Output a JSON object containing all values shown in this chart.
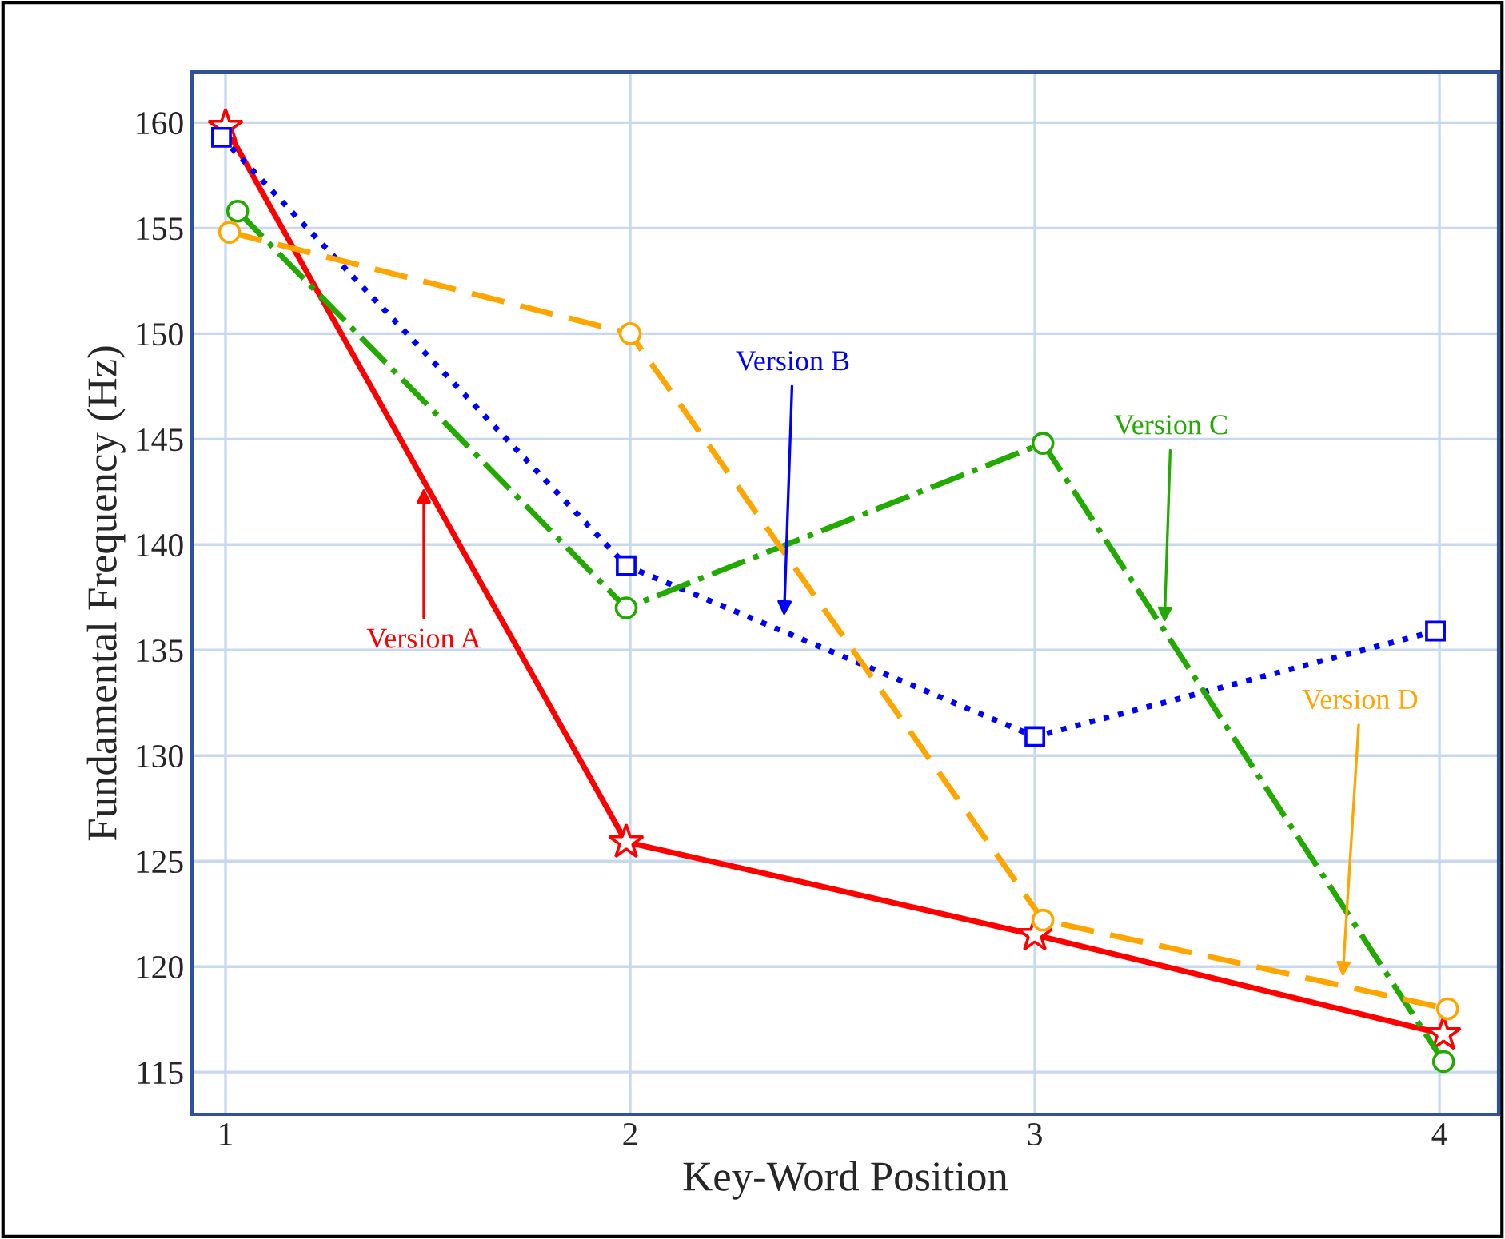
{
  "chart_data": {
    "type": "line",
    "xlabel": "Key-Word Position",
    "ylabel": "Fundamental Frequency (Hz)",
    "xlim": [
      0.917,
      4.146
    ],
    "ylim": [
      113.0,
      162.4
    ],
    "xticks": [
      1,
      2,
      3,
      4
    ],
    "yticks": [
      115,
      120,
      125,
      130,
      135,
      140,
      145,
      150,
      155,
      160
    ],
    "grid": true,
    "series": [
      {
        "color": "#ff0000",
        "x": [
          1.0,
          1.99,
          3.0,
          4.01
        ],
        "values": [
          159.8,
          125.9,
          121.5,
          116.8
        ],
        "marker": "star",
        "line_style": "solid"
      },
      {
        "color": "#0000ff",
        "x": [
          0.99,
          1.99,
          3.0,
          3.99
        ],
        "values": [
          159.3,
          139.0,
          130.9,
          135.9
        ],
        "marker": "square",
        "line_style": "dotted"
      },
      {
        "color": "#22aa00",
        "x": [
          1.03,
          1.99,
          3.02,
          4.01
        ],
        "values": [
          155.8,
          137.0,
          144.8,
          115.5
        ],
        "marker": "circle",
        "line_style": "dashdot"
      },
      {
        "color": "#ffa500",
        "x": [
          1.01,
          2.0,
          3.02,
          4.02
        ],
        "values": [
          154.8,
          150.0,
          122.2,
          118.0
        ],
        "marker": "circle",
        "line_style": "dashed"
      }
    ],
    "annotations": [
      {
        "text": "Version A",
        "x": 1.49,
        "y": 142.9
      },
      {
        "text": "Version B",
        "x": 2.38,
        "y": 136.4
      },
      {
        "text": "Version C",
        "x": 3.32,
        "y": 136.1
      },
      {
        "text": "Version D",
        "x": 3.76,
        "y": 119.3
      }
    ]
  }
}
